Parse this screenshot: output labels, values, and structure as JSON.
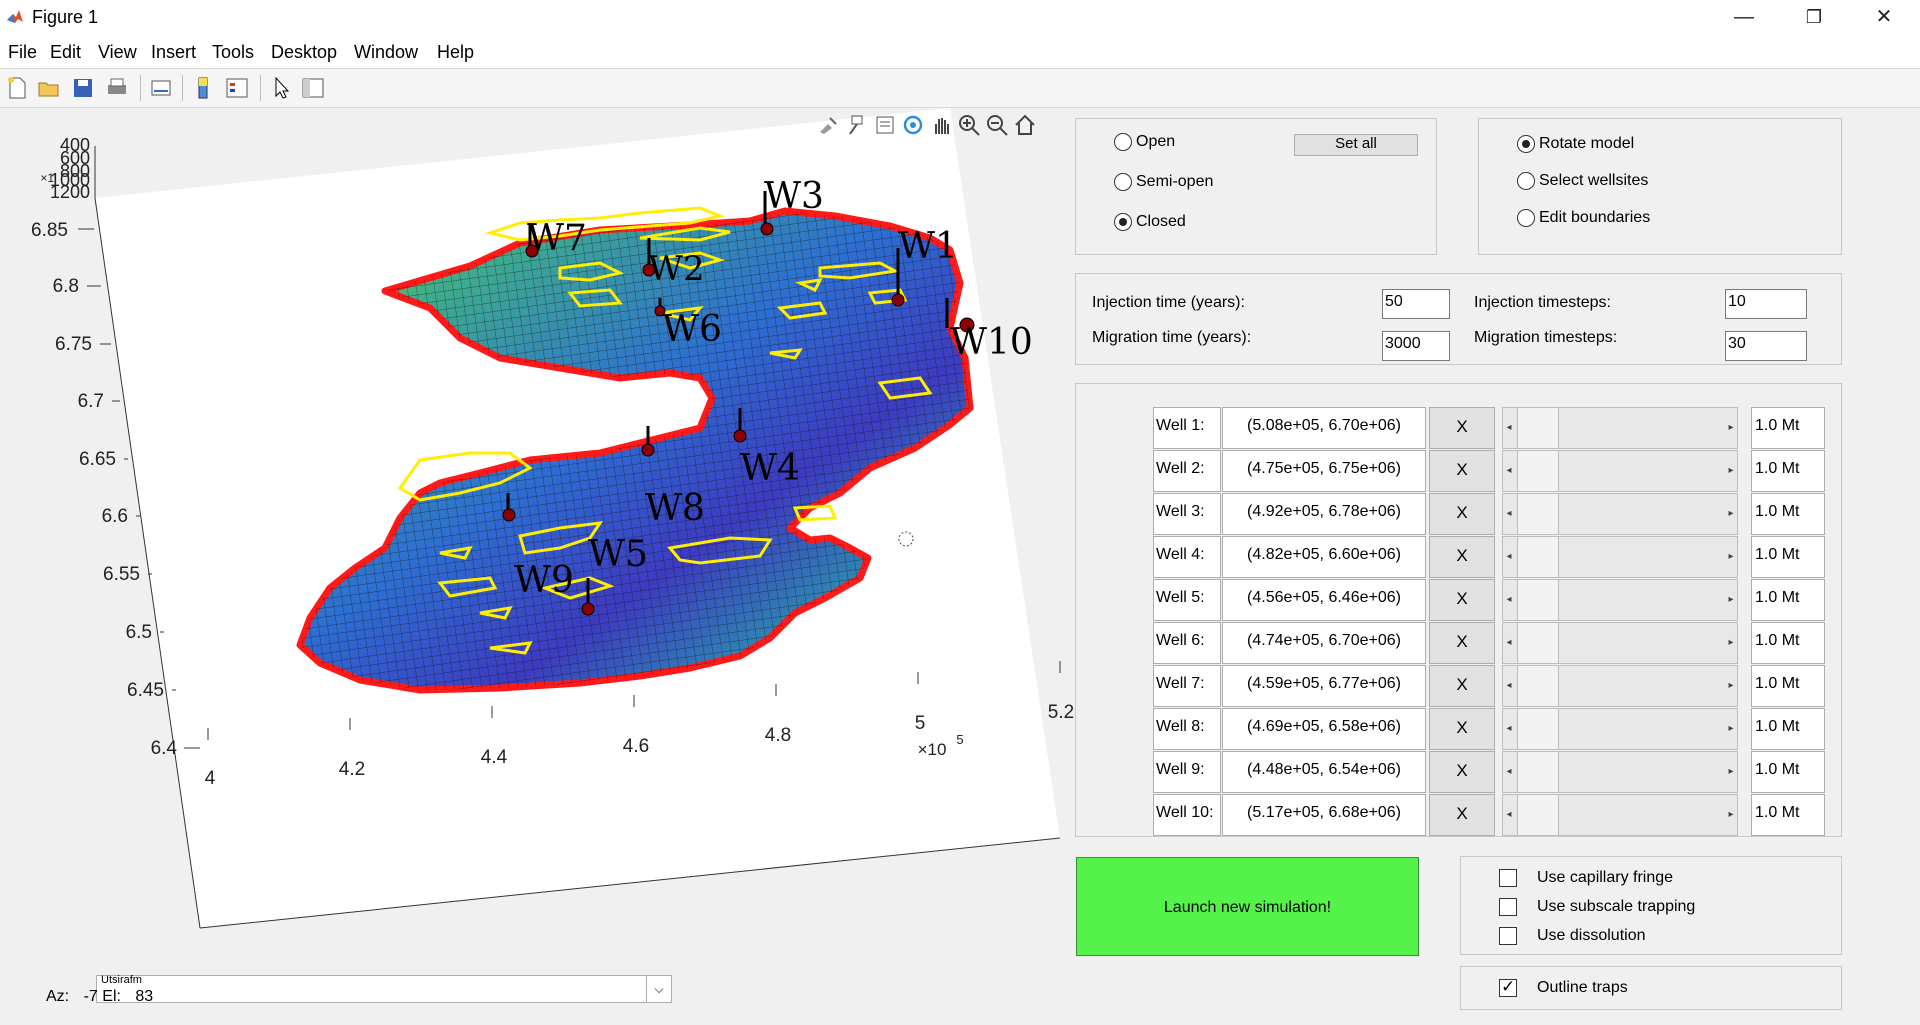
{
  "window": {
    "title": "Figure 1",
    "min": "—",
    "restore": "❐",
    "close": "✕"
  },
  "menu": {
    "items": [
      "File",
      "Edit",
      "View",
      "Insert",
      "Tools",
      "Desktop",
      "Window",
      "Help"
    ]
  },
  "plot": {
    "z_ticks": [
      "400",
      "600",
      "800",
      "1000",
      "1200"
    ],
    "y_ticks": [
      "6.85",
      "6.8",
      "6.75",
      "6.7",
      "6.65",
      "6.6",
      "6.55",
      "6.5",
      "6.45",
      "6.4"
    ],
    "x_ticks": [
      "4",
      "4.2",
      "4.4",
      "4.6",
      "4.8",
      "5",
      "5.2"
    ],
    "x_exponent": "×10",
    "x_exponent_power": "5",
    "z_exponent": "×1",
    "wells": [
      "W1",
      "W2",
      "W3",
      "W4",
      "W5",
      "W6",
      "W7",
      "W8",
      "W9",
      "W10"
    ],
    "colors": {
      "boundary": "#ff1a1a",
      "trap_outline": "#ffee00",
      "well": "#000000"
    }
  },
  "boundary_panel": {
    "open": "Open",
    "semi_open": "Semi-open",
    "closed": "Closed",
    "selected": "closed",
    "set_all": "Set all"
  },
  "mode_panel": {
    "rotate": "Rotate model",
    "select": "Select wellsites",
    "edit": "Edit boundaries",
    "selected": "rotate"
  },
  "time_panel": {
    "inj_time_label": "Injection time (years):",
    "inj_time": "50",
    "mig_time_label": "Migration time (years):",
    "mig_time": "3000",
    "inj_steps_label": "Injection timesteps:",
    "inj_steps": "10",
    "mig_steps_label": "Migration timesteps:",
    "mig_steps": "30"
  },
  "wells": [
    {
      "label": "Well 1:",
      "coord": "(5.08e+05, 6.70e+06)",
      "remove": "X",
      "mass": "1.0 Mt"
    },
    {
      "label": "Well 2:",
      "coord": "(4.75e+05, 6.75e+06)",
      "remove": "X",
      "mass": "1.0 Mt"
    },
    {
      "label": "Well 3:",
      "coord": "(4.92e+05, 6.78e+06)",
      "remove": "X",
      "mass": "1.0 Mt"
    },
    {
      "label": "Well 4:",
      "coord": "(4.82e+05, 6.60e+06)",
      "remove": "X",
      "mass": "1.0 Mt"
    },
    {
      "label": "Well 5:",
      "coord": "(4.56e+05, 6.46e+06)",
      "remove": "X",
      "mass": "1.0 Mt"
    },
    {
      "label": "Well 6:",
      "coord": "(4.74e+05, 6.70e+06)",
      "remove": "X",
      "mass": "1.0 Mt"
    },
    {
      "label": "Well 7:",
      "coord": "(4.59e+05, 6.77e+06)",
      "remove": "X",
      "mass": "1.0 Mt"
    },
    {
      "label": "Well 8:",
      "coord": "(4.69e+05, 6.58e+06)",
      "remove": "X",
      "mass": "1.0 Mt"
    },
    {
      "label": "Well 9:",
      "coord": "(4.48e+05, 6.54e+06)",
      "remove": "X",
      "mass": "1.0 Mt"
    },
    {
      "label": "Well 10:",
      "coord": "(5.17e+05, 6.68e+06)",
      "remove": "X",
      "mass": "1.0 Mt"
    }
  ],
  "launch": {
    "label": "Launch new simulation!",
    "color": "#55f34a"
  },
  "options": {
    "capillary": {
      "label": "Use capillary fringe",
      "checked": false
    },
    "subscale": {
      "label": "Use subscale trapping",
      "checked": false
    },
    "dissolution": {
      "label": "Use dissolution",
      "checked": false
    },
    "outline": {
      "label": "Outline traps",
      "checked": true
    }
  },
  "formation_select": {
    "value": "Utsirafm"
  },
  "view": {
    "az_label": "Az:",
    "az": "-7",
    "el_label": "El:",
    "el": "83"
  }
}
